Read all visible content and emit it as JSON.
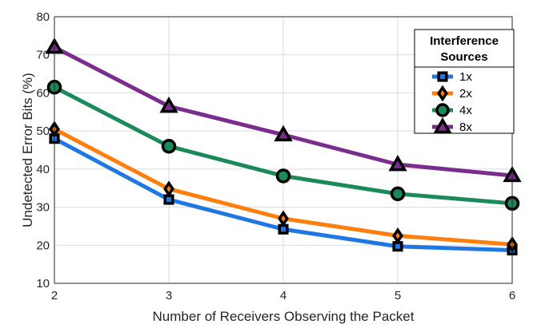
{
  "chart_data": {
    "type": "line",
    "xlabel": "Number of Receivers Observing the Packet",
    "ylabel": "Undetected Error Bits (%)",
    "x": [
      2,
      3,
      4,
      5,
      6
    ],
    "xlim": [
      2,
      6
    ],
    "ylim": [
      10,
      80
    ],
    "xticks": [
      "2",
      "3",
      "4",
      "5",
      "6"
    ],
    "yticks": [
      "10",
      "20",
      "30",
      "40",
      "50",
      "60",
      "70",
      "80"
    ],
    "grid": true,
    "legend": {
      "title_line1": "Interference",
      "title_line2": "Sources",
      "placement": "top-right"
    },
    "series": [
      {
        "name": "1x",
        "color": "#1f77e4",
        "marker": "square",
        "values": [
          48,
          32,
          24.2,
          19.7,
          18.7
        ]
      },
      {
        "name": "2x",
        "color": "#ff7f0e",
        "marker": "diamond",
        "values": [
          50.5,
          34.8,
          27,
          22.5,
          20.2
        ]
      },
      {
        "name": "4x",
        "color": "#1a8a5a",
        "marker": "circle",
        "values": [
          61.5,
          46,
          38.2,
          33.5,
          31
        ]
      },
      {
        "name": "8x",
        "color": "#7b2d8e",
        "marker": "triangle",
        "values": [
          72,
          56.5,
          49,
          41.2,
          38.3
        ]
      }
    ]
  }
}
